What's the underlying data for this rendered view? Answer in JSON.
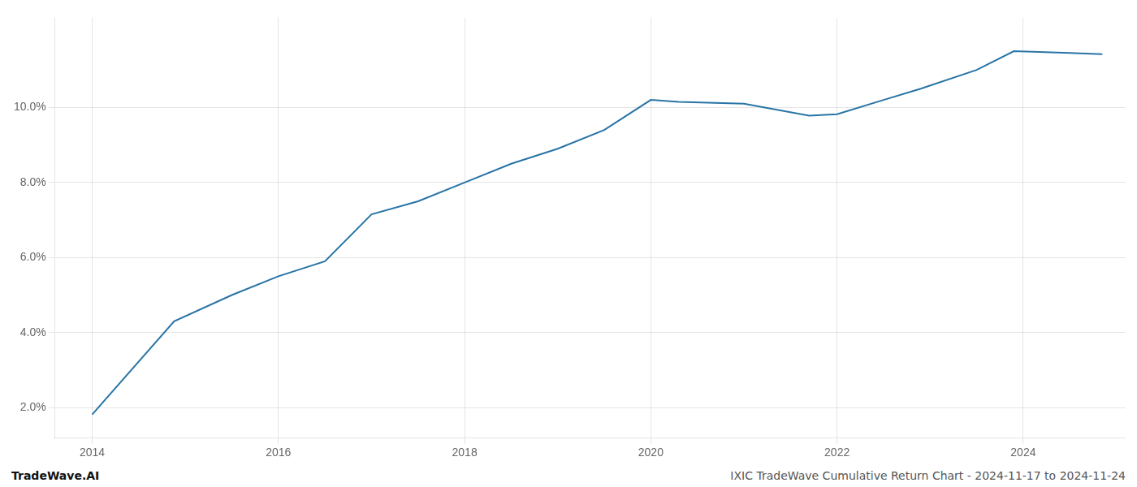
{
  "chart_data": {
    "type": "line",
    "x": [
      2014.0,
      2014.88,
      2015.5,
      2016.0,
      2016.5,
      2017.0,
      2017.5,
      2018.0,
      2018.5,
      2019.0,
      2019.5,
      2020.0,
      2020.3,
      2021.0,
      2021.7,
      2022.0,
      2022.5,
      2022.9,
      2023.5,
      2023.9,
      2024.5,
      2024.85
    ],
    "values": [
      1.82,
      4.3,
      5.0,
      5.5,
      5.9,
      7.15,
      7.5,
      8.0,
      8.5,
      8.9,
      9.4,
      10.2,
      10.15,
      10.1,
      9.78,
      9.82,
      10.2,
      10.5,
      11.0,
      11.5,
      11.45,
      11.42
    ],
    "color": "#2874a6",
    "xlim": [
      2013.6,
      2025.1
    ],
    "xticks": [
      2014,
      2016,
      2018,
      2020,
      2022,
      2024
    ],
    "ylim": [
      1.2,
      12.4
    ],
    "yticks": [
      {
        "value": 2.0,
        "label": "2.0%"
      },
      {
        "value": 4.0,
        "label": "4.0%"
      },
      {
        "value": 6.0,
        "label": "6.0%"
      },
      {
        "value": 8.0,
        "label": "8.0%"
      },
      {
        "value": 10.0,
        "label": "10.0%"
      }
    ],
    "grid": true,
    "annotations": [
      "TradeWave.AI",
      "IXIC TradeWave Cumulative Return Chart - 2024-11-17 to 2024-11-24"
    ]
  }
}
